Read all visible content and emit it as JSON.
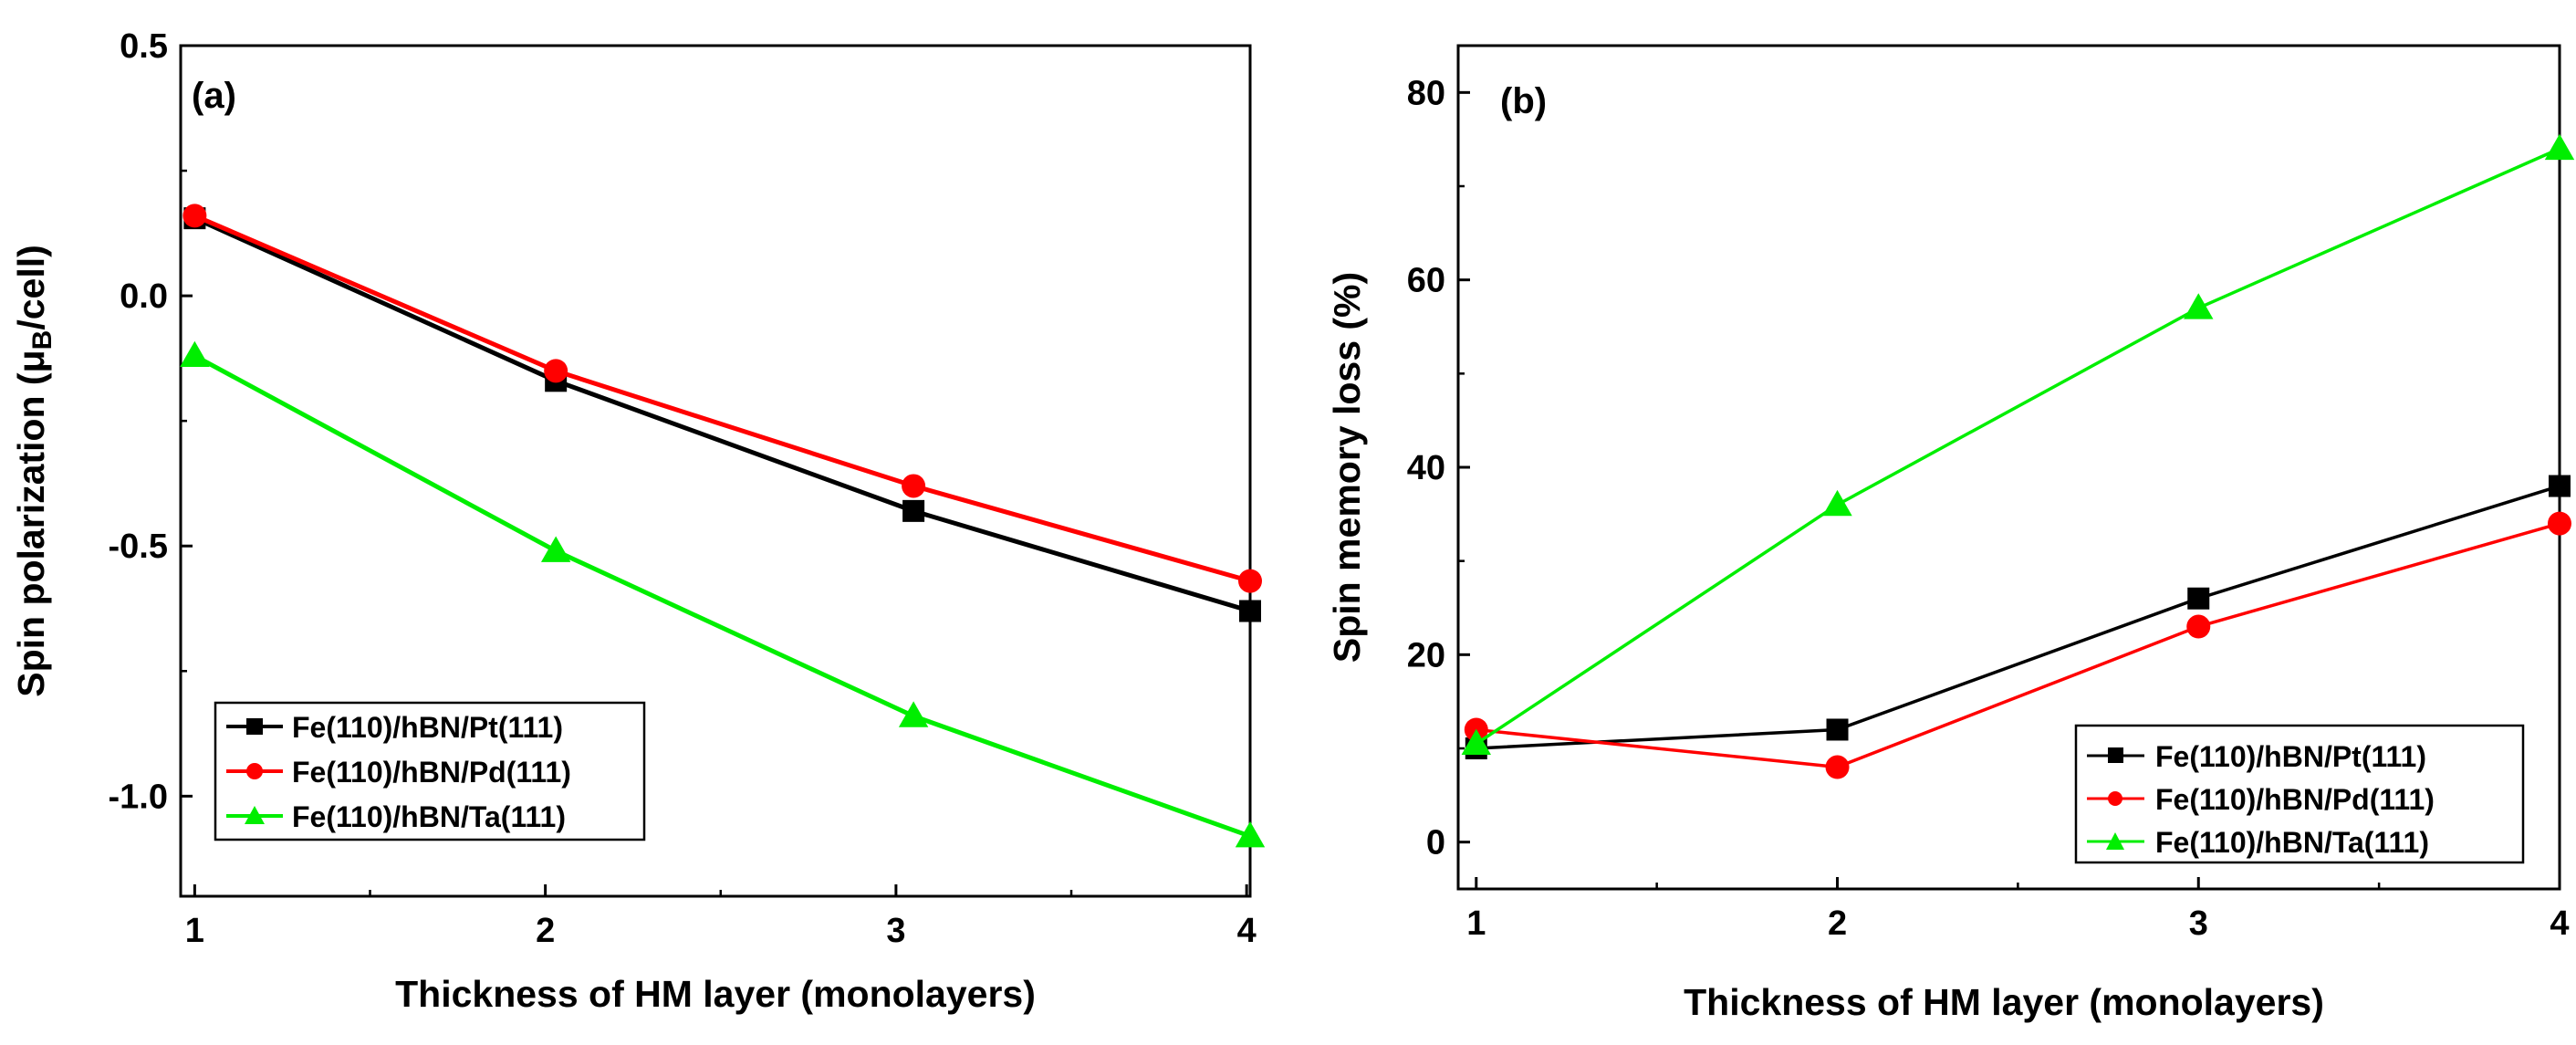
{
  "chart_data": [
    {
      "type": "line",
      "panel_label": "(a)",
      "xlabel": "Thickness of HM layer (monolayers)",
      "ylabel_pre": "Spin polarization (",
      "ylabel_mu": "μ",
      "ylabel_sub": "B",
      "ylabel_post": "/cell)",
      "x": [
        1,
        2,
        3,
        4
      ],
      "xlim": [
        0.96,
        4.01
      ],
      "ylim": [
        -1.2,
        0.5
      ],
      "xticks": [
        "1",
        "2",
        "3",
        "4"
      ],
      "yticks": [
        "0.5",
        "0.0",
        "-0.5",
        "-1.0"
      ],
      "ytick_values": [
        0.5,
        0.0,
        -0.5,
        -1.0
      ],
      "legend_position": "bottom-left",
      "series": [
        {
          "name": "Fe(110)/hBN/Pt(111)",
          "color": "#000000",
          "marker": "square",
          "x": [
            1,
            2.03,
            3.05,
            4.01
          ],
          "values": [
            0.155,
            -0.17,
            -0.43,
            -0.63
          ]
        },
        {
          "name": "Fe(110)/hBN/Pd(111)",
          "color": "#ff0000",
          "marker": "circle",
          "x": [
            1,
            2.03,
            3.05,
            4.01
          ],
          "values": [
            0.16,
            -0.15,
            -0.38,
            -0.57
          ]
        },
        {
          "name": "Fe(110)/hBN/Ta(111)",
          "color": "#00ee00",
          "marker": "triangle",
          "x": [
            1,
            2.03,
            3.05,
            4.01
          ],
          "values": [
            -0.12,
            -0.51,
            -0.84,
            -1.08
          ]
        }
      ]
    },
    {
      "type": "line",
      "panel_label": "(b)",
      "xlabel": "Thickness of HM layer (monolayers)",
      "ylabel": "Spin memory loss (%)",
      "x": [
        1,
        2,
        3,
        4
      ],
      "xlim": [
        0.95,
        4.0
      ],
      "ylim": [
        -5,
        85
      ],
      "xticks": [
        "1",
        "2",
        "3",
        "4"
      ],
      "yticks": [
        "0",
        "20",
        "40",
        "60",
        "80"
      ],
      "ytick_values": [
        0,
        20,
        40,
        60,
        80
      ],
      "legend_position": "bottom-right",
      "series": [
        {
          "name": "Fe(110)/hBN/Pt(111)",
          "color": "#000000",
          "marker": "square",
          "x": [
            1,
            2,
            3,
            4
          ],
          "values": [
            10,
            12,
            26,
            38
          ]
        },
        {
          "name": "Fe(110)/hBN/Pd(111)",
          "color": "#ff0000",
          "marker": "circle",
          "x": [
            1,
            2,
            3,
            4
          ],
          "values": [
            12,
            8,
            23,
            34
          ]
        },
        {
          "name": "Fe(110)/hBN/Ta(111)",
          "color": "#00ee00",
          "marker": "triangle",
          "x": [
            1,
            2,
            3,
            4
          ],
          "values": [
            10.5,
            36,
            57,
            74
          ]
        }
      ]
    }
  ]
}
